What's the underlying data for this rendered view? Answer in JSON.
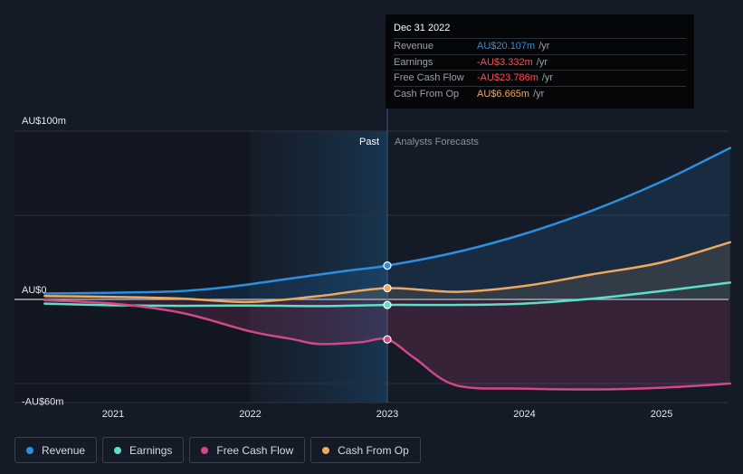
{
  "chart_data": {
    "type": "line",
    "y_ticks": [
      {
        "value": 100,
        "label": "AU$100m"
      },
      {
        "value": 0,
        "label": "AU$0"
      },
      {
        "value": -60,
        "label": "-AU$60m"
      }
    ],
    "ylim": [
      -60,
      100
    ],
    "xlim": [
      2020.5,
      2025.5
    ],
    "x_ticks": [
      {
        "value": 2021,
        "label": "2021"
      },
      {
        "value": 2022,
        "label": "2022"
      },
      {
        "value": 2023,
        "label": "2023"
      },
      {
        "value": 2024,
        "label": "2024"
      },
      {
        "value": 2025,
        "label": "2025"
      }
    ],
    "divider_x": 2023,
    "past_label": "Past",
    "forecast_label": "Analysts Forecasts",
    "series": [
      {
        "name": "Revenue",
        "color": "#2b8fe0",
        "fill": true,
        "points": [
          [
            2020.5,
            3.5
          ],
          [
            2021.0,
            4.0
          ],
          [
            2021.5,
            5.0
          ],
          [
            2021.9,
            8.0
          ],
          [
            2022.3,
            12.5
          ],
          [
            2022.7,
            17.0
          ],
          [
            2023.0,
            20.1
          ],
          [
            2023.5,
            28.0
          ],
          [
            2024.0,
            39.0
          ],
          [
            2024.5,
            53.0
          ],
          [
            2025.0,
            70.0
          ],
          [
            2025.5,
            90.0
          ]
        ]
      },
      {
        "name": "Earnings",
        "color": "#5ee0c8",
        "fill": false,
        "points": [
          [
            2020.5,
            -2.5
          ],
          [
            2021.0,
            -3.5
          ],
          [
            2021.5,
            -3.8
          ],
          [
            2022.0,
            -3.6
          ],
          [
            2022.5,
            -4.0
          ],
          [
            2023.0,
            -3.3
          ],
          [
            2023.5,
            -3.3
          ],
          [
            2024.0,
            -2.5
          ],
          [
            2024.5,
            0.5
          ],
          [
            2025.0,
            5.0
          ],
          [
            2025.5,
            10.0
          ]
        ]
      },
      {
        "name": "Free Cash Flow",
        "color": "#d0488a",
        "fill": true,
        "points": [
          [
            2020.5,
            -0.5
          ],
          [
            2021.0,
            -2.5
          ],
          [
            2021.5,
            -8.0
          ],
          [
            2022.0,
            -19.0
          ],
          [
            2022.3,
            -23.5
          ],
          [
            2022.5,
            -26.5
          ],
          [
            2022.8,
            -25.5
          ],
          [
            2023.0,
            -23.8
          ],
          [
            2023.2,
            -35.0
          ],
          [
            2023.5,
            -51.0
          ],
          [
            2024.0,
            -53.0
          ],
          [
            2024.5,
            -53.5
          ],
          [
            2025.0,
            -52.5
          ],
          [
            2025.5,
            -50.0
          ]
        ]
      },
      {
        "name": "Cash From Op",
        "color": "#f0a860",
        "fill": true,
        "points": [
          [
            2020.5,
            2.0
          ],
          [
            2021.0,
            1.5
          ],
          [
            2021.5,
            0.5
          ],
          [
            2022.0,
            -1.5
          ],
          [
            2022.5,
            2.0
          ],
          [
            2023.0,
            6.7
          ],
          [
            2023.5,
            4.5
          ],
          [
            2024.0,
            8.0
          ],
          [
            2024.5,
            15.0
          ],
          [
            2025.0,
            22.0
          ],
          [
            2025.5,
            34.0
          ]
        ]
      }
    ],
    "highlight_x": 2023,
    "tooltip": {
      "date": "Dec 31 2022",
      "rows": [
        {
          "label": "Revenue",
          "value": "AU$20.107m",
          "unit": "/yr",
          "color": "#2b8fe0"
        },
        {
          "label": "Earnings",
          "value": "-AU$3.332m",
          "unit": "/yr",
          "color": "#ff4d4d"
        },
        {
          "label": "Free Cash Flow",
          "value": "-AU$23.786m",
          "unit": "/yr",
          "color": "#ff4d4d"
        },
        {
          "label": "Cash From Op",
          "value": "AU$6.665m",
          "unit": "/yr",
          "color": "#f0a860"
        }
      ]
    }
  },
  "legend": [
    {
      "label": "Revenue",
      "color": "#2b8fe0"
    },
    {
      "label": "Earnings",
      "color": "#5ee0c8"
    },
    {
      "label": "Free Cash Flow",
      "color": "#d0488a"
    },
    {
      "label": "Cash From Op",
      "color": "#f0a860"
    }
  ]
}
